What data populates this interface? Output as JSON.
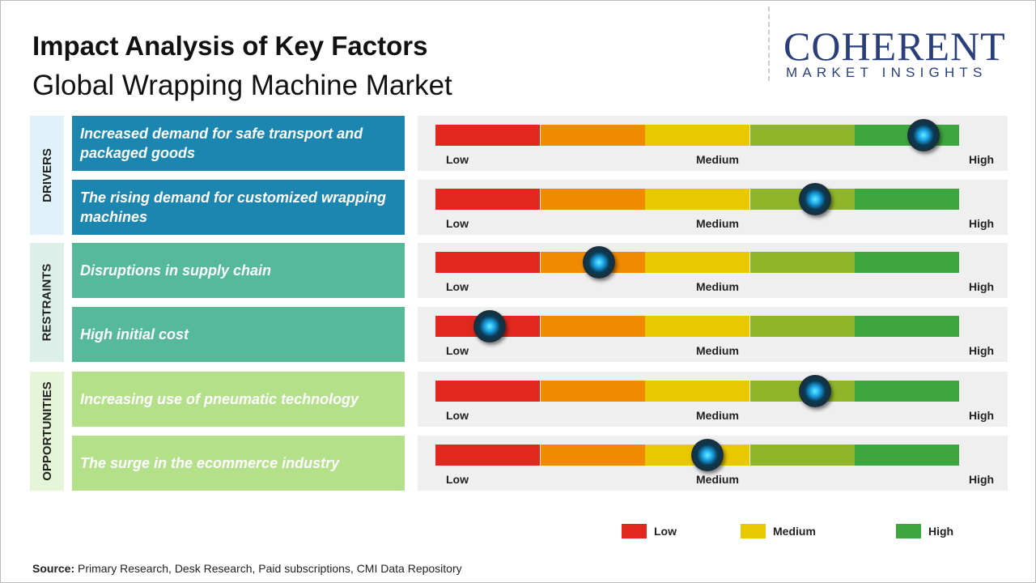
{
  "header": {
    "title": "Impact Analysis of Key Factors",
    "subtitle": "Global Wrapping Machine Market"
  },
  "logo": {
    "name": "COHERENT",
    "tagline": "MARKET INSIGHTS"
  },
  "groups": [
    {
      "label": "DRIVERS",
      "factors": [
        {
          "text": "Increased demand for safe transport and packaged goods"
        },
        {
          "text": "The rising demand for customized wrapping machines"
        }
      ]
    },
    {
      "label": "RESTRAINTS",
      "factors": [
        {
          "text": "Disruptions in supply chain"
        },
        {
          "text": "High initial cost"
        }
      ]
    },
    {
      "label": "OPPORTUNITIES",
      "factors": [
        {
          "text": "Increasing use of pneumatic technology"
        },
        {
          "text": "The surge in the ecommerce industry"
        }
      ]
    }
  ],
  "scale_labels": [
    "Low",
    "Medium",
    "High"
  ],
  "legend": [
    {
      "label": "Low",
      "color": "#e0281e"
    },
    {
      "label": "Medium",
      "color": "#e8c800"
    },
    {
      "label": "High",
      "color": "#3ea63e"
    }
  ],
  "source": {
    "label": "Source:",
    "text": "Primary Research, Desk Research, Paid subscriptions, CMI Data Repository"
  }
}
